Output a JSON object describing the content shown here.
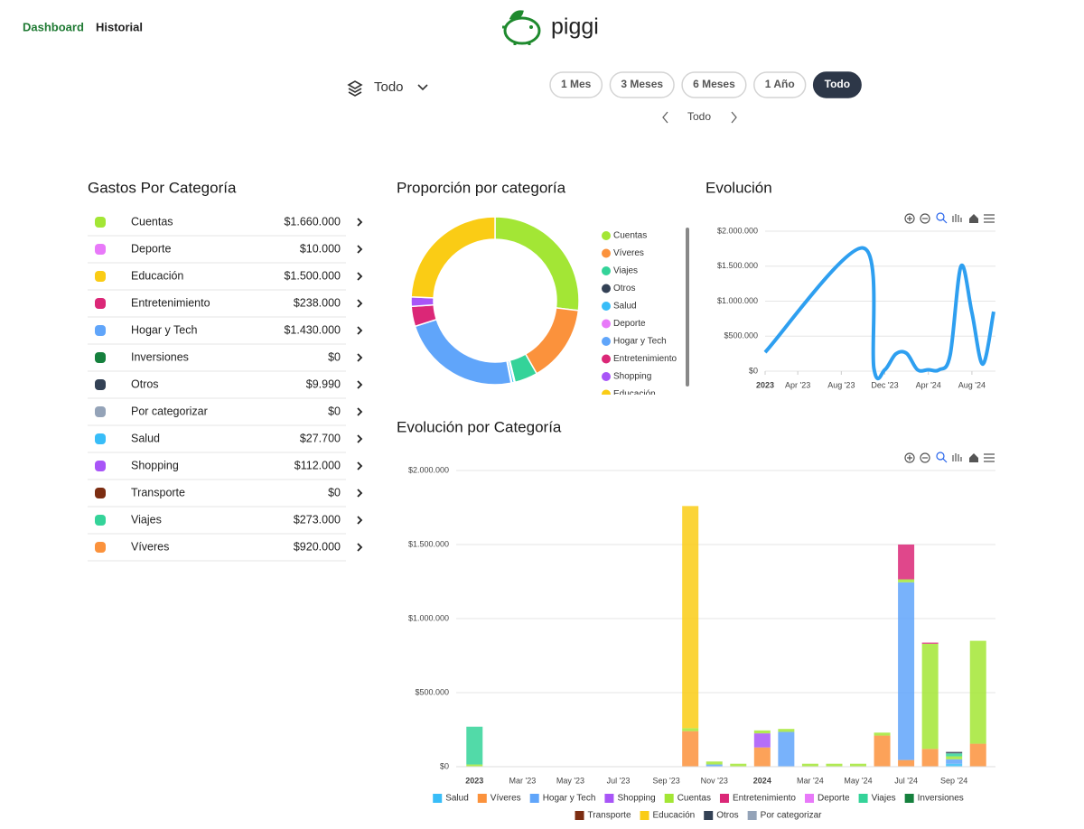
{
  "nav": {
    "links": [
      "Dashboard",
      "Historial"
    ],
    "logo": "piggi"
  },
  "filters": {
    "account": "Todo",
    "periods": [
      "1 Mes",
      "3 Meses",
      "6 Meses",
      "1 Año",
      "Todo"
    ],
    "active_period": "Todo",
    "range_label": "Todo"
  },
  "category_list": {
    "title": "Gastos Por Categoría",
    "rows": [
      {
        "name": "Cuentas",
        "amount": "$1.660.000",
        "icon_color": "#a3e635"
      },
      {
        "name": "Deporte",
        "amount": "$10.000",
        "icon_color": "#e879f9"
      },
      {
        "name": "Educación",
        "amount": "$1.500.000",
        "icon_color": "#facc15"
      },
      {
        "name": "Entretenimiento",
        "amount": "$238.000",
        "icon_color": "#db2777"
      },
      {
        "name": "Hogar y Tech",
        "amount": "$1.430.000",
        "icon_color": "#60a5fa"
      },
      {
        "name": "Inversiones",
        "amount": "$0",
        "icon_color": "#15803d"
      },
      {
        "name": "Otros",
        "amount": "$9.990",
        "icon_color": "#334155"
      },
      {
        "name": "Por categorizar",
        "amount": "$0",
        "icon_color": "#94a3b8"
      },
      {
        "name": "Salud",
        "amount": "$27.700",
        "icon_color": "#38bdf8"
      },
      {
        "name": "Shopping",
        "amount": "$112.000",
        "icon_color": "#a855f7"
      },
      {
        "name": "Transporte",
        "amount": "$0",
        "icon_color": "#7c2d12"
      },
      {
        "name": "Viajes",
        "amount": "$273.000",
        "icon_color": "#34d399"
      },
      {
        "name": "Víveres",
        "amount": "$920.000",
        "icon_color": "#fb923c"
      }
    ]
  },
  "chart_data": [
    {
      "type": "donut",
      "title": "Proporción por categoría",
      "categories": [
        "Cuentas",
        "Víveres",
        "Viajes",
        "Otros",
        "Salud",
        "Deporte",
        "Hogar y Tech",
        "Entretenimiento",
        "Shopping",
        "Educación"
      ],
      "values": [
        1660000,
        920000,
        273000,
        9990,
        27700,
        10000,
        1430000,
        238000,
        112000,
        1500000
      ],
      "colors": [
        "#a3e635",
        "#fb923c",
        "#34d399",
        "#334155",
        "#38bdf8",
        "#e879f9",
        "#60a5fa",
        "#db2777",
        "#a855f7",
        "#facc15"
      ],
      "legend": "right"
    },
    {
      "type": "line",
      "title": "Evolución",
      "color": "#2e9ff0",
      "x": [
        "2023-01",
        "2023-10",
        "2023-11",
        "2023-12",
        "2024-01",
        "2024-02",
        "2024-03",
        "2024-04",
        "2024-05",
        "2024-06",
        "2024-07",
        "2024-08",
        "2024-09",
        "2024-10"
      ],
      "values": [
        270000,
        1760000,
        35000,
        20000,
        245000,
        255000,
        20000,
        20000,
        20000,
        230000,
        1500000,
        838000,
        100000,
        850000
      ],
      "xlim": [
        "2023-01",
        "2024-10"
      ],
      "xticks": [
        {
          "value": "2023-01",
          "label": "2023"
        },
        {
          "value": "2023-04",
          "label": "Apr '23"
        },
        {
          "value": "2023-08",
          "label": "Aug '23"
        },
        {
          "value": "2023-12",
          "label": "Dec '23"
        },
        {
          "value": "2024-04",
          "label": "Apr '24"
        },
        {
          "value": "2024-08",
          "label": "Aug '24"
        }
      ],
      "ylim": [
        0,
        2000000
      ],
      "yticks": [
        {
          "value": 0,
          "label": "$0"
        },
        {
          "value": 500000,
          "label": "$500.000"
        },
        {
          "value": 1000000,
          "label": "$1.000.000"
        },
        {
          "value": 1500000,
          "label": "$1.500.000"
        },
        {
          "value": 2000000,
          "label": "$2.000.000"
        }
      ],
      "grid": true
    },
    {
      "type": "bar",
      "stacked": true,
      "title": "Evolución por Categoría",
      "categories": [
        "2023",
        null,
        "Mar '23",
        null,
        "May '23",
        null,
        "Jul '23",
        null,
        "Sep '23",
        null,
        "Nov '23",
        null,
        "2024",
        null,
        "Mar '24",
        null,
        "May '24",
        null,
        "Jul '24",
        null,
        "Sep '24",
        null
      ],
      "series": [
        {
          "name": "Salud",
          "color": "#38bdf8",
          "values": [
            0,
            0,
            0,
            0,
            0,
            0,
            0,
            0,
            0,
            0,
            0,
            0,
            0,
            0,
            0,
            0,
            0,
            0,
            0,
            0,
            20000,
            0
          ]
        },
        {
          "name": "Víveres",
          "color": "#fb923c",
          "values": [
            0,
            0,
            0,
            0,
            0,
            0,
            0,
            0,
            0,
            240000,
            0,
            0,
            130000,
            0,
            0,
            0,
            0,
            210000,
            45000,
            120000,
            0,
            155000
          ]
        },
        {
          "name": "Hogar y Tech",
          "color": "#60a5fa",
          "values": [
            0,
            0,
            0,
            0,
            0,
            0,
            0,
            0,
            0,
            0,
            15000,
            0,
            0,
            235000,
            0,
            0,
            0,
            0,
            1200000,
            0,
            30000,
            0
          ]
        },
        {
          "name": "Shopping",
          "color": "#a855f7",
          "values": [
            0,
            0,
            0,
            0,
            0,
            0,
            0,
            0,
            0,
            0,
            0,
            0,
            95000,
            0,
            0,
            0,
            0,
            0,
            0,
            0,
            0,
            0
          ]
        },
        {
          "name": "Cuentas",
          "color": "#a3e635",
          "values": [
            15000,
            0,
            0,
            0,
            0,
            0,
            0,
            0,
            0,
            20000,
            20000,
            20000,
            20000,
            20000,
            20000,
            20000,
            20000,
            20000,
            20000,
            710000,
            20000,
            695000
          ]
        },
        {
          "name": "Entretenimiento",
          "color": "#db2777",
          "values": [
            0,
            0,
            0,
            0,
            0,
            0,
            0,
            0,
            0,
            0,
            0,
            0,
            0,
            0,
            0,
            0,
            0,
            0,
            235000,
            8000,
            0,
            0
          ]
        },
        {
          "name": "Deporte",
          "color": "#e879f9",
          "values": [
            0,
            0,
            0,
            0,
            0,
            0,
            0,
            0,
            0,
            0,
            0,
            0,
            0,
            0,
            0,
            0,
            0,
            0,
            0,
            0,
            0,
            0
          ]
        },
        {
          "name": "Viajes",
          "color": "#34d399",
          "values": [
            255000,
            0,
            0,
            0,
            0,
            0,
            0,
            0,
            0,
            0,
            0,
            0,
            0,
            0,
            0,
            0,
            0,
            0,
            0,
            0,
            20000,
            0
          ]
        },
        {
          "name": "Inversiones",
          "color": "#15803d",
          "values": [
            0,
            0,
            0,
            0,
            0,
            0,
            0,
            0,
            0,
            0,
            0,
            0,
            0,
            0,
            0,
            0,
            0,
            0,
            0,
            0,
            0,
            0
          ]
        },
        {
          "name": "Transporte",
          "color": "#7c2d12",
          "values": [
            0,
            0,
            0,
            0,
            0,
            0,
            0,
            0,
            0,
            0,
            0,
            0,
            0,
            0,
            0,
            0,
            0,
            0,
            0,
            0,
            0,
            0
          ]
        },
        {
          "name": "Educación",
          "color": "#facc15",
          "values": [
            0,
            0,
            0,
            0,
            0,
            0,
            0,
            0,
            0,
            1500000,
            0,
            0,
            0,
            0,
            0,
            0,
            0,
            0,
            0,
            0,
            0,
            0
          ]
        },
        {
          "name": "Otros",
          "color": "#334155",
          "values": [
            0,
            0,
            0,
            0,
            0,
            0,
            0,
            0,
            0,
            0,
            0,
            0,
            0,
            0,
            0,
            0,
            0,
            0,
            0,
            0,
            10000,
            0
          ]
        },
        {
          "name": "Por categorizar",
          "color": "#94a3b8",
          "values": [
            0,
            0,
            0,
            0,
            0,
            0,
            0,
            0,
            0,
            0,
            0,
            0,
            0,
            0,
            0,
            0,
            0,
            0,
            0,
            0,
            0,
            0
          ]
        }
      ],
      "ylim": [
        0,
        2000000
      ],
      "yticks": [
        {
          "value": 0,
          "label": "$0"
        },
        {
          "value": 500000,
          "label": "$500.000"
        },
        {
          "value": 1000000,
          "label": "$1.000.000"
        },
        {
          "value": 1500000,
          "label": "$1.500.000"
        },
        {
          "value": 2000000,
          "label": "$2.000.000"
        }
      ],
      "grid": true,
      "legend": "bottom"
    }
  ]
}
